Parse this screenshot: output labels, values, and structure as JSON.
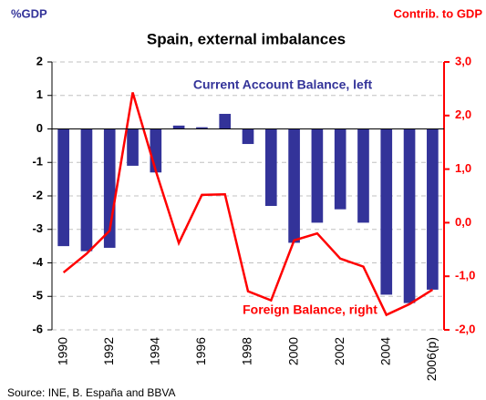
{
  "chart_data": {
    "type": "bar_line",
    "title": "Spain, external imbalances",
    "y_label": "%GDP",
    "y2_label": "Contrib. to GDP",
    "source": "Source: INE, B. España and BBVA",
    "categories": [
      "1990",
      null,
      "1992",
      null,
      "1994",
      null,
      "1996",
      null,
      "1998",
      null,
      "2000",
      null,
      "2002",
      null,
      "2004",
      null,
      "2006(p)"
    ],
    "series": [
      {
        "name": "Current Account Balance, left",
        "color": "#333399",
        "type": "bar",
        "values": [
          -3.5,
          -3.65,
          -3.55,
          -1.1,
          -1.3,
          0.1,
          0.05,
          0.45,
          -0.45,
          -2.3,
          -3.4,
          -2.8,
          -2.4,
          -2.8,
          -4.95,
          -5.2,
          -4.8
        ]
      },
      {
        "name": "Foreign Balance, right",
        "color": "#ff0000",
        "type": "line",
        "axis": "y2",
        "values": [
          -0.93,
          -0.58,
          -0.15,
          2.43,
          0.97,
          -0.38,
          0.52,
          0.53,
          -1.28,
          -1.45,
          -0.33,
          -0.2,
          -0.67,
          -0.82,
          -1.72,
          -1.52,
          -1.25
        ]
      }
    ],
    "ylim": [
      -6,
      2
    ],
    "yticks": [
      -6,
      -5,
      -4,
      -3,
      -2,
      -1,
      0,
      1,
      2
    ],
    "y2lim": [
      -2,
      3
    ],
    "y2ticks": [
      {
        "value": -2,
        "label": "-2,0"
      },
      {
        "value": -1,
        "label": "-1,0"
      },
      {
        "value": 0,
        "label": "0,0"
      },
      {
        "value": 1,
        "label": "1,0"
      },
      {
        "value": 2,
        "label": "2,0"
      },
      {
        "value": 3,
        "label": "3,0"
      }
    ],
    "grid": true
  }
}
